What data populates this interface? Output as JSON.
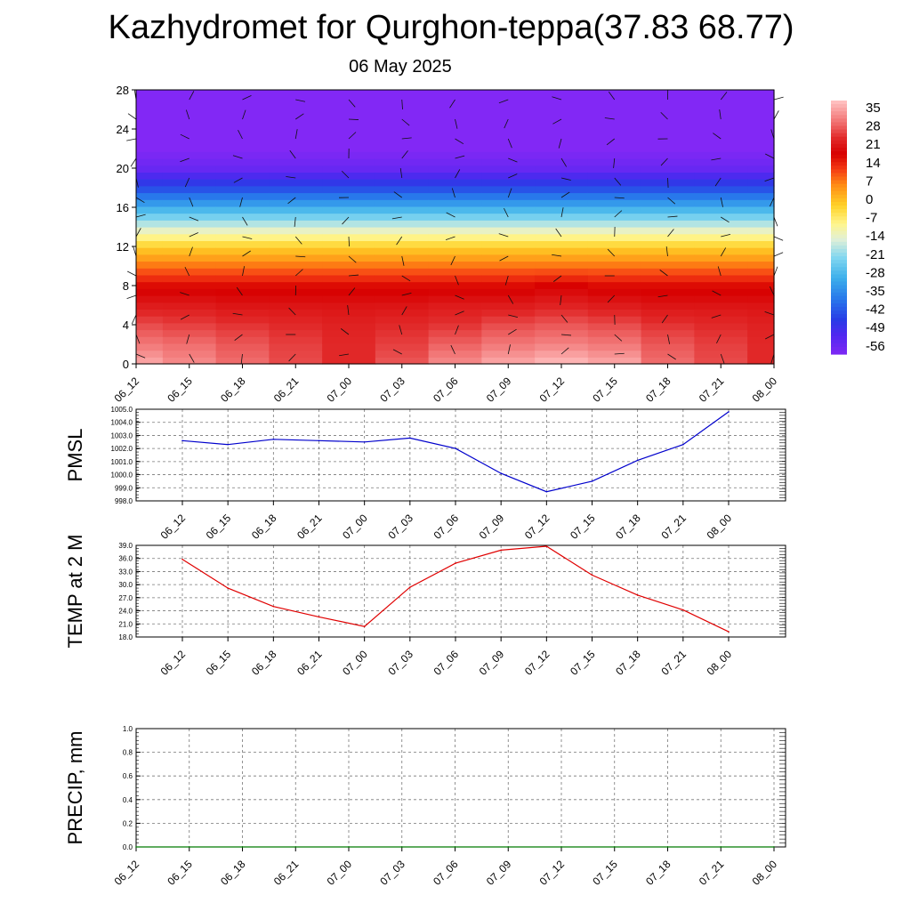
{
  "title": "Kazhydromet for Qurghon-teppa(37.83 68.77)",
  "subtitle": "06 May 2025",
  "chart_data": [
    {
      "type": "heatmap",
      "title": "",
      "xlabel": "",
      "ylabel": "",
      "x_tick_labels": [
        "06_12",
        "06_15",
        "06_18",
        "06_21",
        "07_00",
        "07_03",
        "07_06",
        "07_09",
        "07_12",
        "07_15",
        "07_18",
        "07_21",
        "08_00"
      ],
      "y_ticks": [
        0,
        4,
        8,
        12,
        16,
        20,
        24,
        28
      ],
      "ylim": [
        0,
        28
      ],
      "colorbar_labels": [
        35,
        28,
        21,
        14,
        7,
        0,
        -7,
        -14,
        -21,
        -28,
        -35,
        -42,
        -49,
        -56
      ],
      "colorbar_range": [
        -60,
        38
      ],
      "values_by_level": [
        {
          "level": 0,
          "values": [
            36,
            33,
            30,
            27,
            24,
            28,
            33,
            36,
            38,
            36,
            30,
            27,
            24
          ]
        },
        {
          "level": 2,
          "values": [
            31,
            30,
            28,
            26,
            24,
            26,
            29,
            31,
            32,
            31,
            28,
            26,
            24
          ]
        },
        {
          "level": 4,
          "values": [
            27,
            26,
            25,
            24,
            23,
            24,
            25,
            27,
            28,
            27,
            25,
            24,
            23
          ]
        },
        {
          "level": 6,
          "values": [
            22,
            22,
            21,
            21,
            21,
            21,
            22,
            22,
            23,
            22,
            21,
            21,
            21
          ]
        },
        {
          "level": 8,
          "values": [
            17,
            17,
            17,
            17,
            17,
            17,
            17,
            17,
            18,
            17,
            17,
            17,
            17
          ]
        },
        {
          "level": 10,
          "values": [
            8,
            8,
            8,
            8,
            8,
            8,
            8,
            8,
            8,
            8,
            8,
            8,
            8
          ]
        },
        {
          "level": 12,
          "values": [
            -2,
            -2,
            -2,
            -2,
            -2,
            -2,
            -2,
            -2,
            -2,
            -2,
            -2,
            -2,
            -2
          ]
        },
        {
          "level": 14,
          "values": [
            -16,
            -16,
            -16,
            -16,
            -16,
            -16,
            -16,
            -16,
            -16,
            -16,
            -16,
            -16,
            -16
          ]
        },
        {
          "level": 16,
          "values": [
            -30,
            -30,
            -30,
            -30,
            -30,
            -30,
            -30,
            -30,
            -30,
            -30,
            -30,
            -30,
            -30
          ]
        },
        {
          "level": 18,
          "values": [
            -44,
            -44,
            -44,
            -44,
            -44,
            -44,
            -44,
            -44,
            -44,
            -44,
            -44,
            -44,
            -44
          ]
        },
        {
          "level": 20,
          "values": [
            -56,
            -56,
            -56,
            -56,
            -56,
            -56,
            -56,
            -56,
            -56,
            -56,
            -56,
            -56,
            -56
          ]
        },
        {
          "level": 22,
          "values": [
            -60,
            -60,
            -60,
            -60,
            -60,
            -60,
            -60,
            -60,
            -60,
            -60,
            -60,
            -60,
            -60
          ]
        },
        {
          "level": 28,
          "values": [
            -60,
            -60,
            -60,
            -60,
            -60,
            -60,
            -60,
            -60,
            -60,
            -60,
            -60,
            -60,
            -60
          ]
        }
      ],
      "wind_barbs": true,
      "grid": false
    },
    {
      "type": "line",
      "ylabel": "PMSL",
      "categories": [
        "06_12",
        "06_15",
        "06_18",
        "06_21",
        "07_00",
        "07_03",
        "07_06",
        "07_09",
        "07_12",
        "07_15",
        "07_18",
        "07_21",
        "08_00"
      ],
      "y_tick_labels": [
        "1005.0",
        "1004.0",
        "1003.0",
        "1002.0",
        "1001.0",
        "1000.0",
        "999.0",
        "998.0"
      ],
      "ylim": [
        998,
        1005
      ],
      "series": [
        {
          "color": "#0000cc",
          "values": [
            1002.6,
            1002.3,
            1002.7,
            1002.6,
            1002.5,
            1002.8,
            1002.0,
            1000.1,
            998.7,
            999.5,
            1001.1,
            1002.3,
            1004.8
          ]
        }
      ],
      "grid": true
    },
    {
      "type": "line",
      "ylabel": "TEMP at 2 M",
      "categories": [
        "06_12",
        "06_15",
        "06_18",
        "06_21",
        "07_00",
        "07_03",
        "07_06",
        "07_09",
        "07_12",
        "07_15",
        "07_18",
        "07_21",
        "08_00"
      ],
      "y_tick_labels": [
        "39.0",
        "36.0",
        "33.0",
        "30.0",
        "27.0",
        "24.0",
        "21.0",
        "18.0"
      ],
      "ylim": [
        18,
        39
      ],
      "series": [
        {
          "color": "#e00000",
          "values": [
            35.8,
            29.2,
            25.0,
            22.6,
            20.4,
            29.4,
            34.9,
            37.9,
            38.8,
            32.2,
            27.6,
            24.2,
            19.2
          ]
        }
      ],
      "grid": true
    },
    {
      "type": "line",
      "ylabel": "PRECIP, mm",
      "categories": [
        "06_12",
        "06_15",
        "06_18",
        "06_21",
        "07_00",
        "07_03",
        "07_06",
        "07_09",
        "07_12",
        "07_15",
        "07_18",
        "07_21",
        "08_00"
      ],
      "y_tick_labels": [
        "1.0",
        "0.8",
        "0.6",
        "0.4",
        "0.2",
        "0.0"
      ],
      "ylim": [
        0,
        1
      ],
      "series": [
        {
          "color": "#007a00",
          "values": [
            0,
            0,
            0,
            0,
            0,
            0,
            0,
            0,
            0,
            0,
            0,
            0,
            0
          ]
        }
      ],
      "grid": true
    }
  ]
}
